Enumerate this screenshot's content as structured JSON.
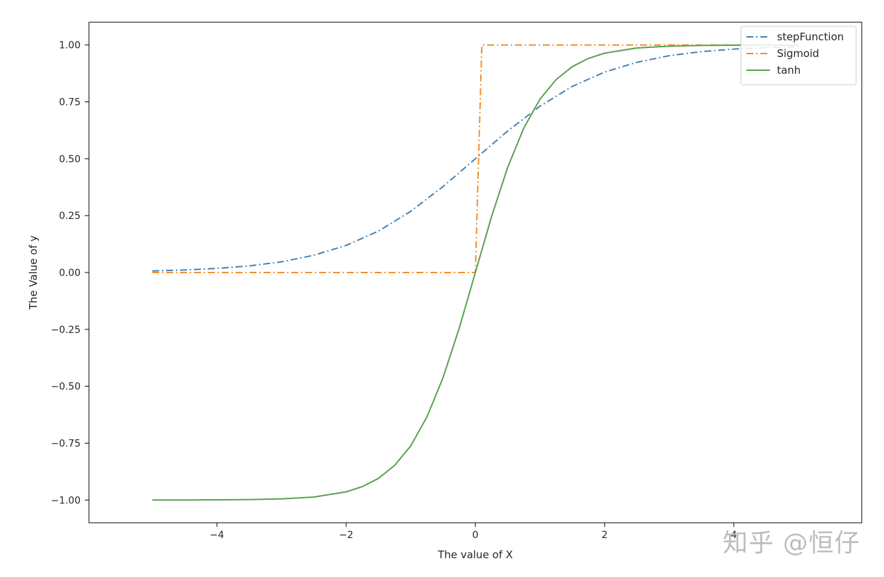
{
  "chart_data": {
    "type": "line",
    "xlabel": "The value of X",
    "ylabel": "The Value of y",
    "xlim": [
      -5.98,
      5.98
    ],
    "ylim": [
      -1.1,
      1.1
    ],
    "xticks": [
      -4,
      -2,
      0,
      2,
      4
    ],
    "xtick_labels": [
      "−4",
      "−2",
      "0",
      "2",
      "4"
    ],
    "yticks": [
      1.0,
      0.75,
      0.5,
      0.25,
      0.0,
      -0.25,
      -0.5,
      -0.75,
      -1.0
    ],
    "ytick_labels": [
      "1.00",
      "0.75",
      "0.50",
      "0.25",
      "0.00",
      "−0.25",
      "−0.50",
      "−0.75",
      "−1.00"
    ],
    "x_range": [
      -5,
      5
    ],
    "legend_position": "top-right",
    "grid": false,
    "series": [
      {
        "name": "stepFunction",
        "color": "#4682b4",
        "style": "dashdot",
        "x": [
          -5,
          -4.5,
          -4,
          -3.5,
          -3,
          -2.5,
          -2,
          -1.5,
          -1,
          -0.5,
          0,
          0.5,
          1,
          1.5,
          2,
          2.5,
          3,
          3.5,
          4,
          4.5,
          5
        ],
        "y": [
          0.007,
          0.011,
          0.018,
          0.029,
          0.047,
          0.076,
          0.119,
          0.182,
          0.269,
          0.378,
          0.5,
          0.622,
          0.731,
          0.818,
          0.881,
          0.924,
          0.953,
          0.971,
          0.982,
          0.989,
          0.993
        ]
      },
      {
        "name": "Sigmoid",
        "color": "#f28e2b",
        "style": "dashdot",
        "x": [
          -5,
          0,
          0.1,
          5
        ],
        "y": [
          0,
          0,
          1,
          1
        ]
      },
      {
        "name": "tanh",
        "color": "#59a14f",
        "style": "solid",
        "x": [
          -5,
          -4.5,
          -4,
          -3.5,
          -3,
          -2.5,
          -2,
          -1.75,
          -1.5,
          -1.25,
          -1,
          -0.75,
          -0.5,
          -0.25,
          0,
          0.25,
          0.5,
          0.75,
          1,
          1.25,
          1.5,
          1.75,
          2,
          2.5,
          3,
          3.5,
          4,
          4.5,
          5
        ],
        "y": [
          -1.0,
          -1.0,
          -0.999,
          -0.998,
          -0.995,
          -0.987,
          -0.964,
          -0.941,
          -0.905,
          -0.848,
          -0.762,
          -0.635,
          -0.462,
          -0.245,
          0.0,
          0.245,
          0.462,
          0.635,
          0.762,
          0.848,
          0.905,
          0.941,
          0.964,
          0.987,
          0.995,
          0.998,
          0.999,
          1.0,
          1.0
        ]
      }
    ]
  },
  "watermark": {
    "text": "知乎 @恒仔",
    "color": "#bdbdbd"
  }
}
